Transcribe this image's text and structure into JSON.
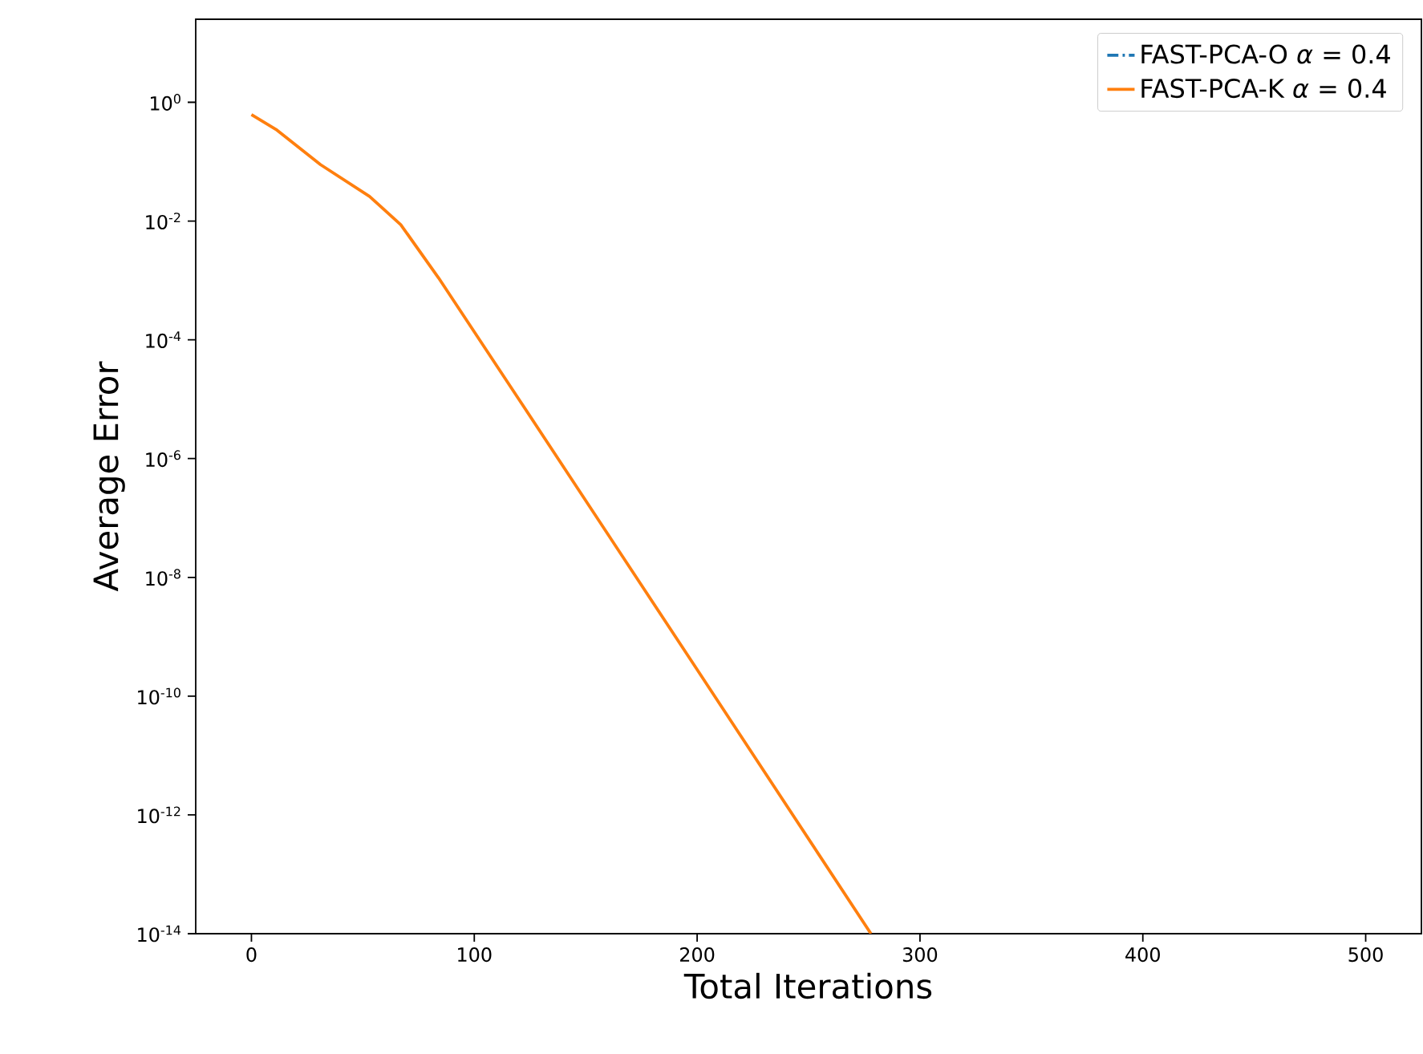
{
  "chart_data": {
    "type": "line",
    "xlabel": "Total Iterations",
    "ylabel": "Average Error",
    "log": "y",
    "xlim": [
      -25,
      525
    ],
    "xticks": [
      0,
      100,
      200,
      300,
      400,
      500
    ],
    "ylim": [
      1e-14,
      25
    ],
    "yticks": [
      {
        "value": 1,
        "label": "10$^{0}$"
      },
      {
        "value": 0.01,
        "label": "10$^{-2}$"
      },
      {
        "value": 0.0001,
        "label": "10$^{-4}$"
      },
      {
        "value": 1e-06,
        "label": "10$^{-6}$"
      },
      {
        "value": 1e-08,
        "label": "10$^{-8}$"
      },
      {
        "value": 1e-10,
        "label": "10$^{-10}$"
      },
      {
        "value": 1e-12,
        "label": "10$^{-12}$"
      },
      {
        "value": 1e-14,
        "label": "10$^{-14}$"
      }
    ],
    "legend": "top right",
    "grid": false,
    "marker": "none",
    "x": [
      0,
      11,
      31,
      53,
      67,
      84,
      120,
      200,
      278
    ],
    "series": [
      {
        "name": "FAST-PCA-O *α* = 0.4",
        "color": "#1f77b4",
        "line_style": "dashdot",
        "values": [
          null,
          null,
          null,
          null,
          null,
          null,
          null,
          null,
          null
        ]
      },
      {
        "name": "FAST-PCA-K *α* = 0.4",
        "color": "#ff7f0e",
        "line_style": "solid",
        "values": [
          0.62,
          0.35,
          0.089,
          0.026,
          0.0087,
          0.0011,
          1e-05,
          2.8e-10,
          1e-14
        ]
      }
    ]
  }
}
